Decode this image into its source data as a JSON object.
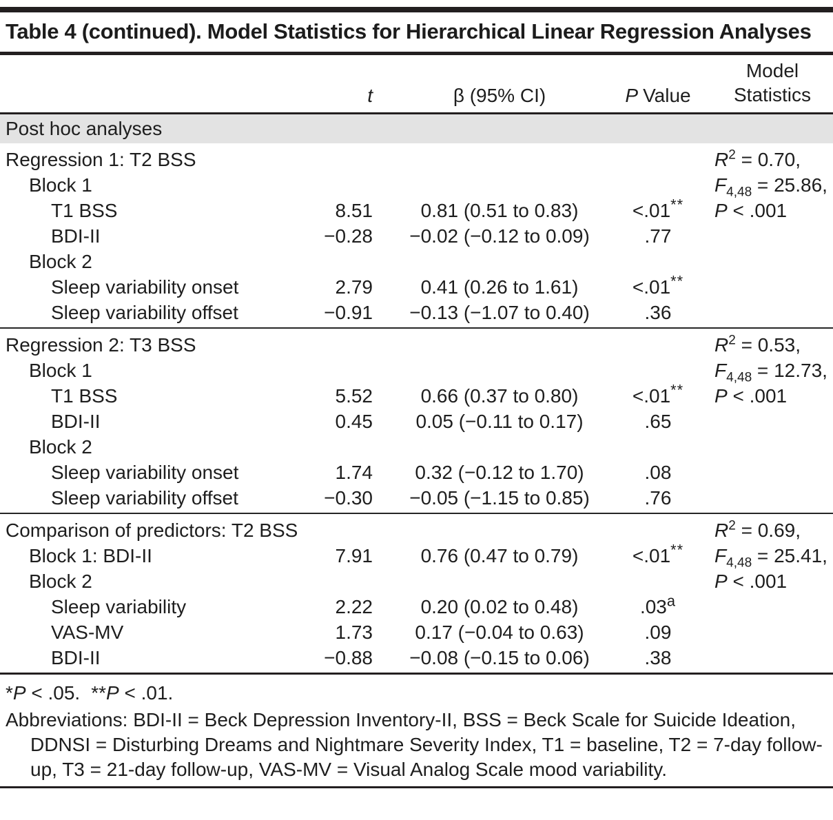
{
  "table": {
    "title": "Table 4 (continued). Model Statistics for Hierarchical Linear Regression Analyses",
    "columns": {
      "t": "t",
      "beta": "β (95% CI)",
      "p_italic": "P",
      "p_rest": "Value",
      "model_line1": "Model",
      "model_line2": "Statistics"
    },
    "section_band": "Post hoc analyses",
    "sections": [
      {
        "rows": [
          {
            "label": "Regression 1: T2 BSS",
            "indent": 0,
            "model": {
              "sym": "R",
              "sup": "2",
              "rest": " = 0.70,"
            }
          },
          {
            "label": "Block 1",
            "indent": 1,
            "model": {
              "sym": "F",
              "sub": "4,48",
              "rest": " = 25.86,"
            }
          },
          {
            "label": "T1 BSS",
            "indent": 2,
            "t": "8.51",
            "beta": "0.81 (0.51 to 0.83)",
            "p": "<.01",
            "p_sup": "**",
            "model": {
              "sym": "P",
              "rest": " < .001"
            }
          },
          {
            "label": "BDI-II",
            "indent": 2,
            "t": "−0.28",
            "beta": "−0.02 (−0.12 to 0.09)",
            "p": ".77"
          },
          {
            "label": "Block 2",
            "indent": 1
          },
          {
            "label": "Sleep variability onset",
            "indent": 2,
            "t": "2.79",
            "beta": "0.41 (0.26 to 1.61)",
            "p": "<.01",
            "p_sup": "**"
          },
          {
            "label": "Sleep variability offset",
            "indent": 2,
            "t": "−0.91",
            "beta": "−0.13 (−1.07 to 0.40)",
            "p": ".36"
          }
        ]
      },
      {
        "rows": [
          {
            "label": "Regression 2: T3 BSS",
            "indent": 0,
            "model": {
              "sym": "R",
              "sup": "2",
              "rest": " = 0.53,"
            }
          },
          {
            "label": "Block 1",
            "indent": 1,
            "model": {
              "sym": "F",
              "sub": "4,48",
              "rest": " = 12.73,"
            }
          },
          {
            "label": "T1 BSS",
            "indent": 2,
            "t": "5.52",
            "beta": "0.66 (0.37 to 0.80)",
            "p": "<.01",
            "p_sup": "**",
            "model": {
              "sym": "P",
              "rest": " < .001"
            }
          },
          {
            "label": "BDI-II",
            "indent": 2,
            "t": "0.45",
            "beta": "0.05 (−0.11 to 0.17)",
            "p": ".65"
          },
          {
            "label": "Block 2",
            "indent": 1
          },
          {
            "label": "Sleep variability onset",
            "indent": 2,
            "t": "1.74",
            "beta": "0.32 (−0.12 to 1.70)",
            "p": ".08"
          },
          {
            "label": "Sleep variability offset",
            "indent": 2,
            "t": "−0.30",
            "beta": "−0.05 (−1.15 to 0.85)",
            "p": ".76"
          }
        ]
      },
      {
        "rows": [
          {
            "label": "Comparison of predictors: T2 BSS",
            "indent": 0,
            "model": {
              "sym": "R",
              "sup": "2",
              "rest": " = 0.69,"
            }
          },
          {
            "label": "Block 1: BDI-II",
            "indent": 1,
            "t": "7.91",
            "beta": "0.76 (0.47 to 0.79)",
            "p": "<.01",
            "p_sup": "**",
            "model": {
              "sym": "F",
              "sub": "4,48",
              "rest": " = 25.41,"
            }
          },
          {
            "label": "Block 2",
            "indent": 1,
            "model": {
              "sym": "P",
              "rest": " < .001"
            }
          },
          {
            "label": "Sleep variability",
            "indent": 2,
            "t": "2.22",
            "beta": "0.20 (0.02 to 0.48)",
            "p": ".03",
            "p_sup": "a"
          },
          {
            "label": "VAS-MV",
            "indent": 2,
            "t": "1.73",
            "beta": "0.17 (−0.04 to 0.63)",
            "p": ".09"
          },
          {
            "label": "BDI-II",
            "indent": 2,
            "t": "−0.88",
            "beta": "−0.08 (−0.15 to 0.06)",
            "p": ".38"
          }
        ]
      }
    ],
    "footnotes": {
      "sig": [
        {
          "stars": "*",
          "p": "P",
          "rest": " < .05."
        },
        {
          "stars": "**",
          "p": "P",
          "rest": " < .01."
        }
      ],
      "abbreviations": "Abbreviations: BDI-II = Beck Depression Inventory-II, BSS = Beck Scale for Suicide Ideation, DDNSI = Disturbing Dreams and Nightmare Severity Index, T1 = baseline, T2 = 7-day follow-up, T3 = 21-day follow-up, VAS-MV = Visual Analog Scale mood variability."
    },
    "colors": {
      "band_bg": "#e3e3e3",
      "rule": "#231f20",
      "text": "#1e1e1e",
      "background": "#ffffff"
    }
  }
}
